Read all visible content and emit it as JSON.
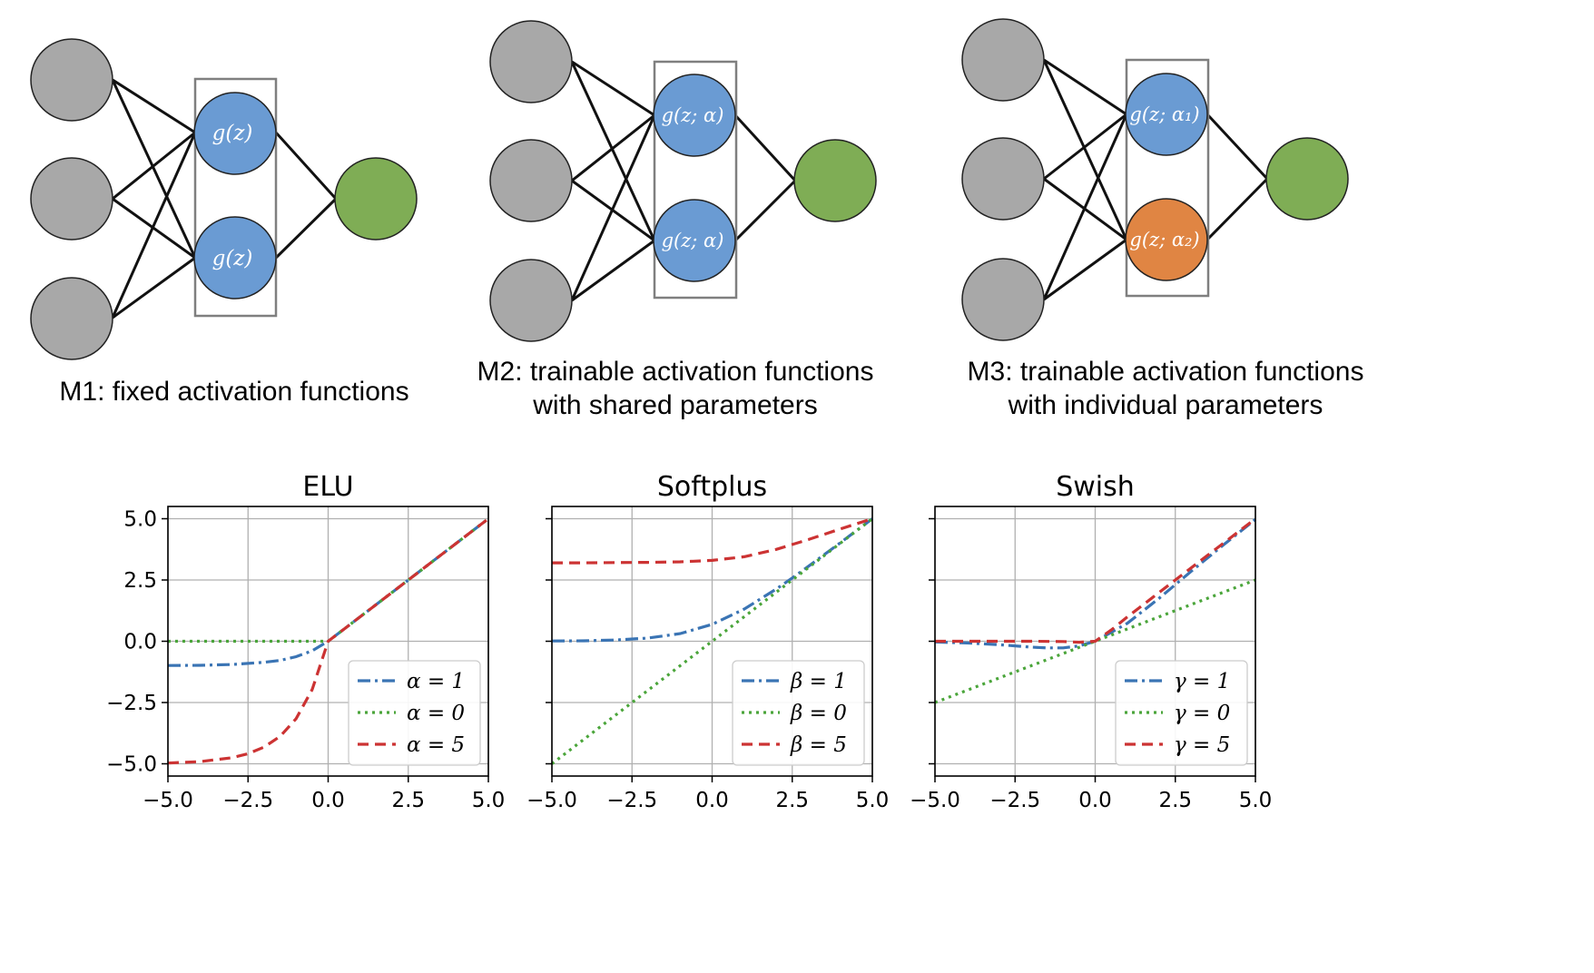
{
  "colors": {
    "input_node": "#a8a8a8",
    "hidden_node": "#6a9bd3",
    "hidden_node_alt": "#e08543",
    "output_node": "#7fad55",
    "node_stroke": "#222222",
    "box_stroke": "#7f7f7f",
    "series_blue": "#3a74b4",
    "series_green": "#4aa53a",
    "series_red": "#cc3333",
    "grid": "#b0b0b0"
  },
  "diagrams": [
    {
      "caption_lines": [
        "M1: fixed activation functions"
      ],
      "hidden_labels": [
        "g(z)",
        "g(z)"
      ]
    },
    {
      "caption_lines": [
        "M2: trainable activation functions",
        "with shared parameters"
      ],
      "hidden_labels": [
        "g(z; α)",
        "g(z; α)"
      ]
    },
    {
      "caption_lines": [
        "M3: trainable activation functions",
        "with individual parameters"
      ],
      "hidden_labels": [
        "g(z; α₁)",
        "g(z; α₂)"
      ]
    }
  ],
  "chart_data": [
    {
      "type": "line",
      "title": "ELU",
      "xlim": [
        -5,
        5
      ],
      "ylim": [
        -5.5,
        5.5
      ],
      "xticks": [
        "−5.0",
        "−2.5",
        "0.0",
        "2.5",
        "5.0"
      ],
      "yticks": [
        "5.0",
        "2.5",
        "0.0",
        "−2.5",
        "−5.0"
      ],
      "grid": true,
      "legend_position": "lower-right",
      "series": [
        {
          "name": "α = 1",
          "style": "dashdot",
          "color": "blue",
          "x": [
            -5,
            -4,
            -3,
            -2,
            -1.5,
            -1,
            -0.5,
            0,
            2.5,
            5
          ],
          "y": [
            -0.99,
            -0.98,
            -0.95,
            -0.86,
            -0.78,
            -0.63,
            -0.39,
            0,
            2.5,
            5
          ]
        },
        {
          "name": "α = 0",
          "style": "dotted",
          "color": "green",
          "x": [
            -5,
            -2.5,
            0,
            2.5,
            5
          ],
          "y": [
            0,
            0,
            0,
            2.5,
            5
          ]
        },
        {
          "name": "α = 5",
          "style": "dashed",
          "color": "red",
          "x": [
            -5,
            -4,
            -3,
            -2.5,
            -2,
            -1.5,
            -1,
            -0.5,
            0,
            2.5,
            5
          ],
          "y": [
            -4.97,
            -4.91,
            -4.75,
            -4.59,
            -4.32,
            -3.88,
            -3.16,
            -1.97,
            0,
            2.5,
            5
          ]
        }
      ]
    },
    {
      "type": "line",
      "title": "Softplus",
      "xlim": [
        -5,
        5
      ],
      "ylim": [
        -5.5,
        5.5
      ],
      "xticks": [
        "−5.0",
        "−2.5",
        "0.0",
        "2.5",
        "5.0"
      ],
      "yticks": [
        "5.0",
        "2.5",
        "0.0",
        "−2.5",
        "−5.0"
      ],
      "grid": true,
      "legend_position": "lower-right",
      "series": [
        {
          "name": "β = 1",
          "style": "dashdot",
          "color": "blue",
          "x": [
            -5,
            -4,
            -3,
            -2,
            -1,
            0,
            1,
            2,
            2.5,
            3,
            4,
            5
          ],
          "y": [
            0.01,
            0.02,
            0.05,
            0.13,
            0.31,
            0.69,
            1.31,
            2.13,
            2.58,
            3.05,
            4.02,
            5.0
          ]
        },
        {
          "name": "β = 0",
          "style": "dotted",
          "color": "green",
          "x": [
            -5,
            5
          ],
          "y": [
            -5,
            5
          ]
        },
        {
          "name": "β = 5",
          "style": "dashed",
          "color": "red",
          "x": [
            -5,
            -4,
            -3,
            -2,
            -1,
            0,
            1,
            2,
            3,
            4,
            5
          ],
          "y": [
            3.2,
            3.2,
            3.21,
            3.22,
            3.24,
            3.3,
            3.45,
            3.75,
            4.15,
            4.58,
            5.0
          ]
        }
      ]
    },
    {
      "type": "line",
      "title": "Swish",
      "xlim": [
        -5,
        5
      ],
      "ylim": [
        -5.5,
        5.5
      ],
      "xticks": [
        "−5.0",
        "−2.5",
        "0.0",
        "2.5",
        "5.0"
      ],
      "yticks": [
        "5.0",
        "2.5",
        "0.0",
        "−2.5",
        "−5.0"
      ],
      "grid": true,
      "legend_position": "lower-right",
      "series": [
        {
          "name": "γ = 1",
          "style": "dashdot",
          "color": "blue",
          "x": [
            -5,
            -4,
            -3,
            -2,
            -1.5,
            -1,
            -0.5,
            0,
            1,
            2,
            3,
            4,
            5
          ],
          "y": [
            -0.03,
            -0.07,
            -0.14,
            -0.24,
            -0.27,
            -0.27,
            -0.19,
            0,
            0.73,
            1.76,
            2.86,
            3.93,
            4.97
          ]
        },
        {
          "name": "γ = 0",
          "style": "dotted",
          "color": "green",
          "x": [
            -5,
            5
          ],
          "y": [
            -2.5,
            2.5
          ]
        },
        {
          "name": "γ = 5",
          "style": "dashed",
          "color": "red",
          "x": [
            -5,
            -3,
            -2,
            -1,
            -0.5,
            0,
            0.5,
            1,
            2.5,
            5
          ],
          "y": [
            0,
            0,
            0,
            -0.01,
            -0.04,
            0,
            0.46,
            0.99,
            2.5,
            5
          ]
        }
      ]
    }
  ]
}
